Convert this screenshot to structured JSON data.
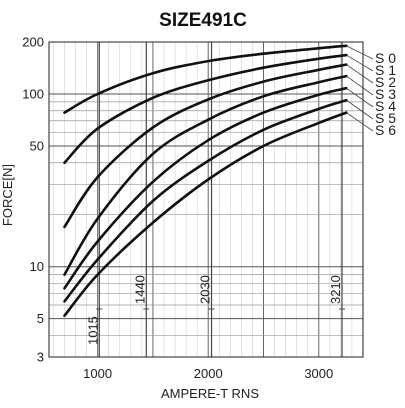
{
  "chart_data": {
    "type": "line",
    "title": "SIZE491C",
    "xlabel": "AMPERE-T RNS",
    "ylabel": "FORCE[N]",
    "x_scale": "linear",
    "y_scale": "log",
    "xlim": [
      560,
      3400
    ],
    "ylim": [
      3,
      200
    ],
    "x_ticks": [
      1000,
      2000,
      3000
    ],
    "y_ticks": [
      3,
      5,
      10,
      50,
      100,
      200
    ],
    "grid": true,
    "markers": [
      1015,
      1440,
      2030,
      3210
    ],
    "marker_labels": [
      "1015",
      "1440",
      "2030",
      "3210"
    ],
    "series": [
      {
        "name": "S 0",
        "x": [
          700,
          1000,
          1500,
          2000,
          2500,
          3000,
          3250
        ],
        "y": [
          78,
          100,
          132,
          155,
          171,
          184,
          190
        ]
      },
      {
        "name": "S 1",
        "x": [
          700,
          1000,
          1500,
          2000,
          2500,
          3000,
          3250
        ],
        "y": [
          40,
          63,
          95,
          120,
          142,
          160,
          168
        ]
      },
      {
        "name": "S 2",
        "x": [
          700,
          1000,
          1500,
          2000,
          2500,
          3000,
          3250
        ],
        "y": [
          17,
          33,
          64,
          93,
          118,
          138,
          148
        ]
      },
      {
        "name": "S 3",
        "x": [
          700,
          1000,
          1500,
          2000,
          2500,
          3000,
          3250
        ],
        "y": [
          9,
          19,
          45,
          71,
          97,
          117,
          127
        ]
      },
      {
        "name": "S 4",
        "x": [
          700,
          1000,
          1500,
          2000,
          2500,
          3000,
          3250
        ],
        "y": [
          7.5,
          14,
          31,
          54,
          78,
          99,
          108
        ]
      },
      {
        "name": "S 5",
        "x": [
          700,
          1000,
          1500,
          2000,
          2500,
          3000,
          3250
        ],
        "y": [
          6.3,
          11,
          24,
          41,
          62,
          82,
          92
        ]
      },
      {
        "name": "S 6",
        "x": [
          700,
          1000,
          1500,
          2000,
          2500,
          3000,
          3250
        ],
        "y": [
          5.2,
          9,
          18,
          32,
          50,
          68,
          78
        ]
      }
    ]
  }
}
